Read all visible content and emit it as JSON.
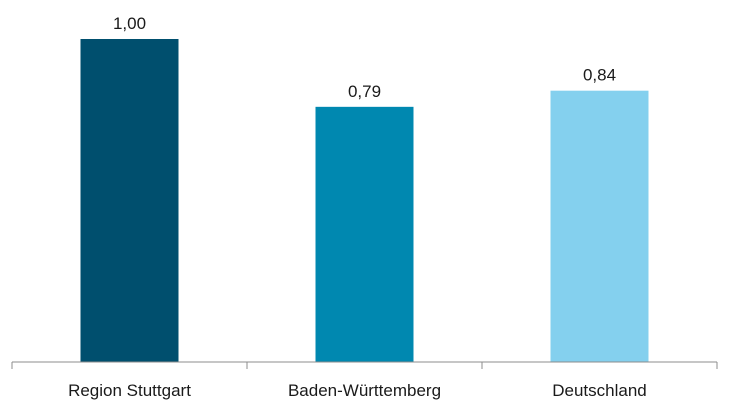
{
  "chart_data": {
    "type": "bar",
    "categories": [
      "Region Stuttgart",
      "Baden-Württemberg",
      "Deutschland"
    ],
    "values": [
      1.0,
      0.79,
      0.84
    ],
    "value_labels": [
      "1,00",
      "0,79",
      "0,84"
    ],
    "colors": [
      "#004F6E",
      "#0088B0",
      "#84D0EE"
    ],
    "ylim": [
      0,
      1.0
    ],
    "title": "",
    "xlabel": "",
    "ylabel": "",
    "grid": false,
    "legend": "none"
  }
}
